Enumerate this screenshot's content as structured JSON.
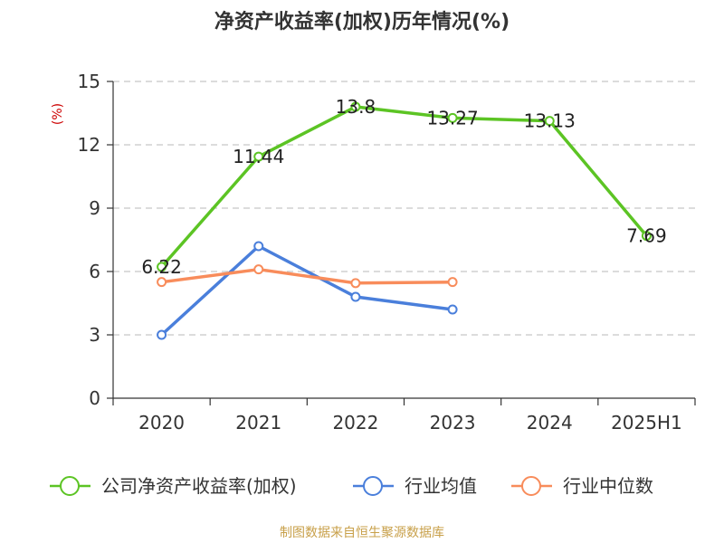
{
  "chart_data": {
    "type": "line",
    "title": "净资产收益率(加权)历年情况(%)",
    "ylabel": "(%)",
    "categories": [
      "2020",
      "2021",
      "2022",
      "2023",
      "2024",
      "2025H1"
    ],
    "ylim": [
      0,
      15
    ],
    "yticks": [
      0,
      3,
      6,
      9,
      12,
      15
    ],
    "grid": true,
    "legend_position": "bottom",
    "series": [
      {
        "name": "公司净资产收益率(加权)",
        "color": "#5cc424",
        "values": [
          6.22,
          11.44,
          13.8,
          13.27,
          13.13,
          7.69
        ],
        "labels": [
          "6.22",
          "11.44",
          "13.8",
          "13.27",
          "13.13",
          "7.69"
        ]
      },
      {
        "name": "行业均值",
        "color": "#4a7fdb",
        "values": [
          3.0,
          7.2,
          4.8,
          4.2,
          null,
          null
        ]
      },
      {
        "name": "行业中位数",
        "color": "#f88c5b",
        "values": [
          5.5,
          6.1,
          5.45,
          5.5,
          null,
          null
        ]
      }
    ]
  },
  "source": "制图数据来自恒生聚源数据库"
}
